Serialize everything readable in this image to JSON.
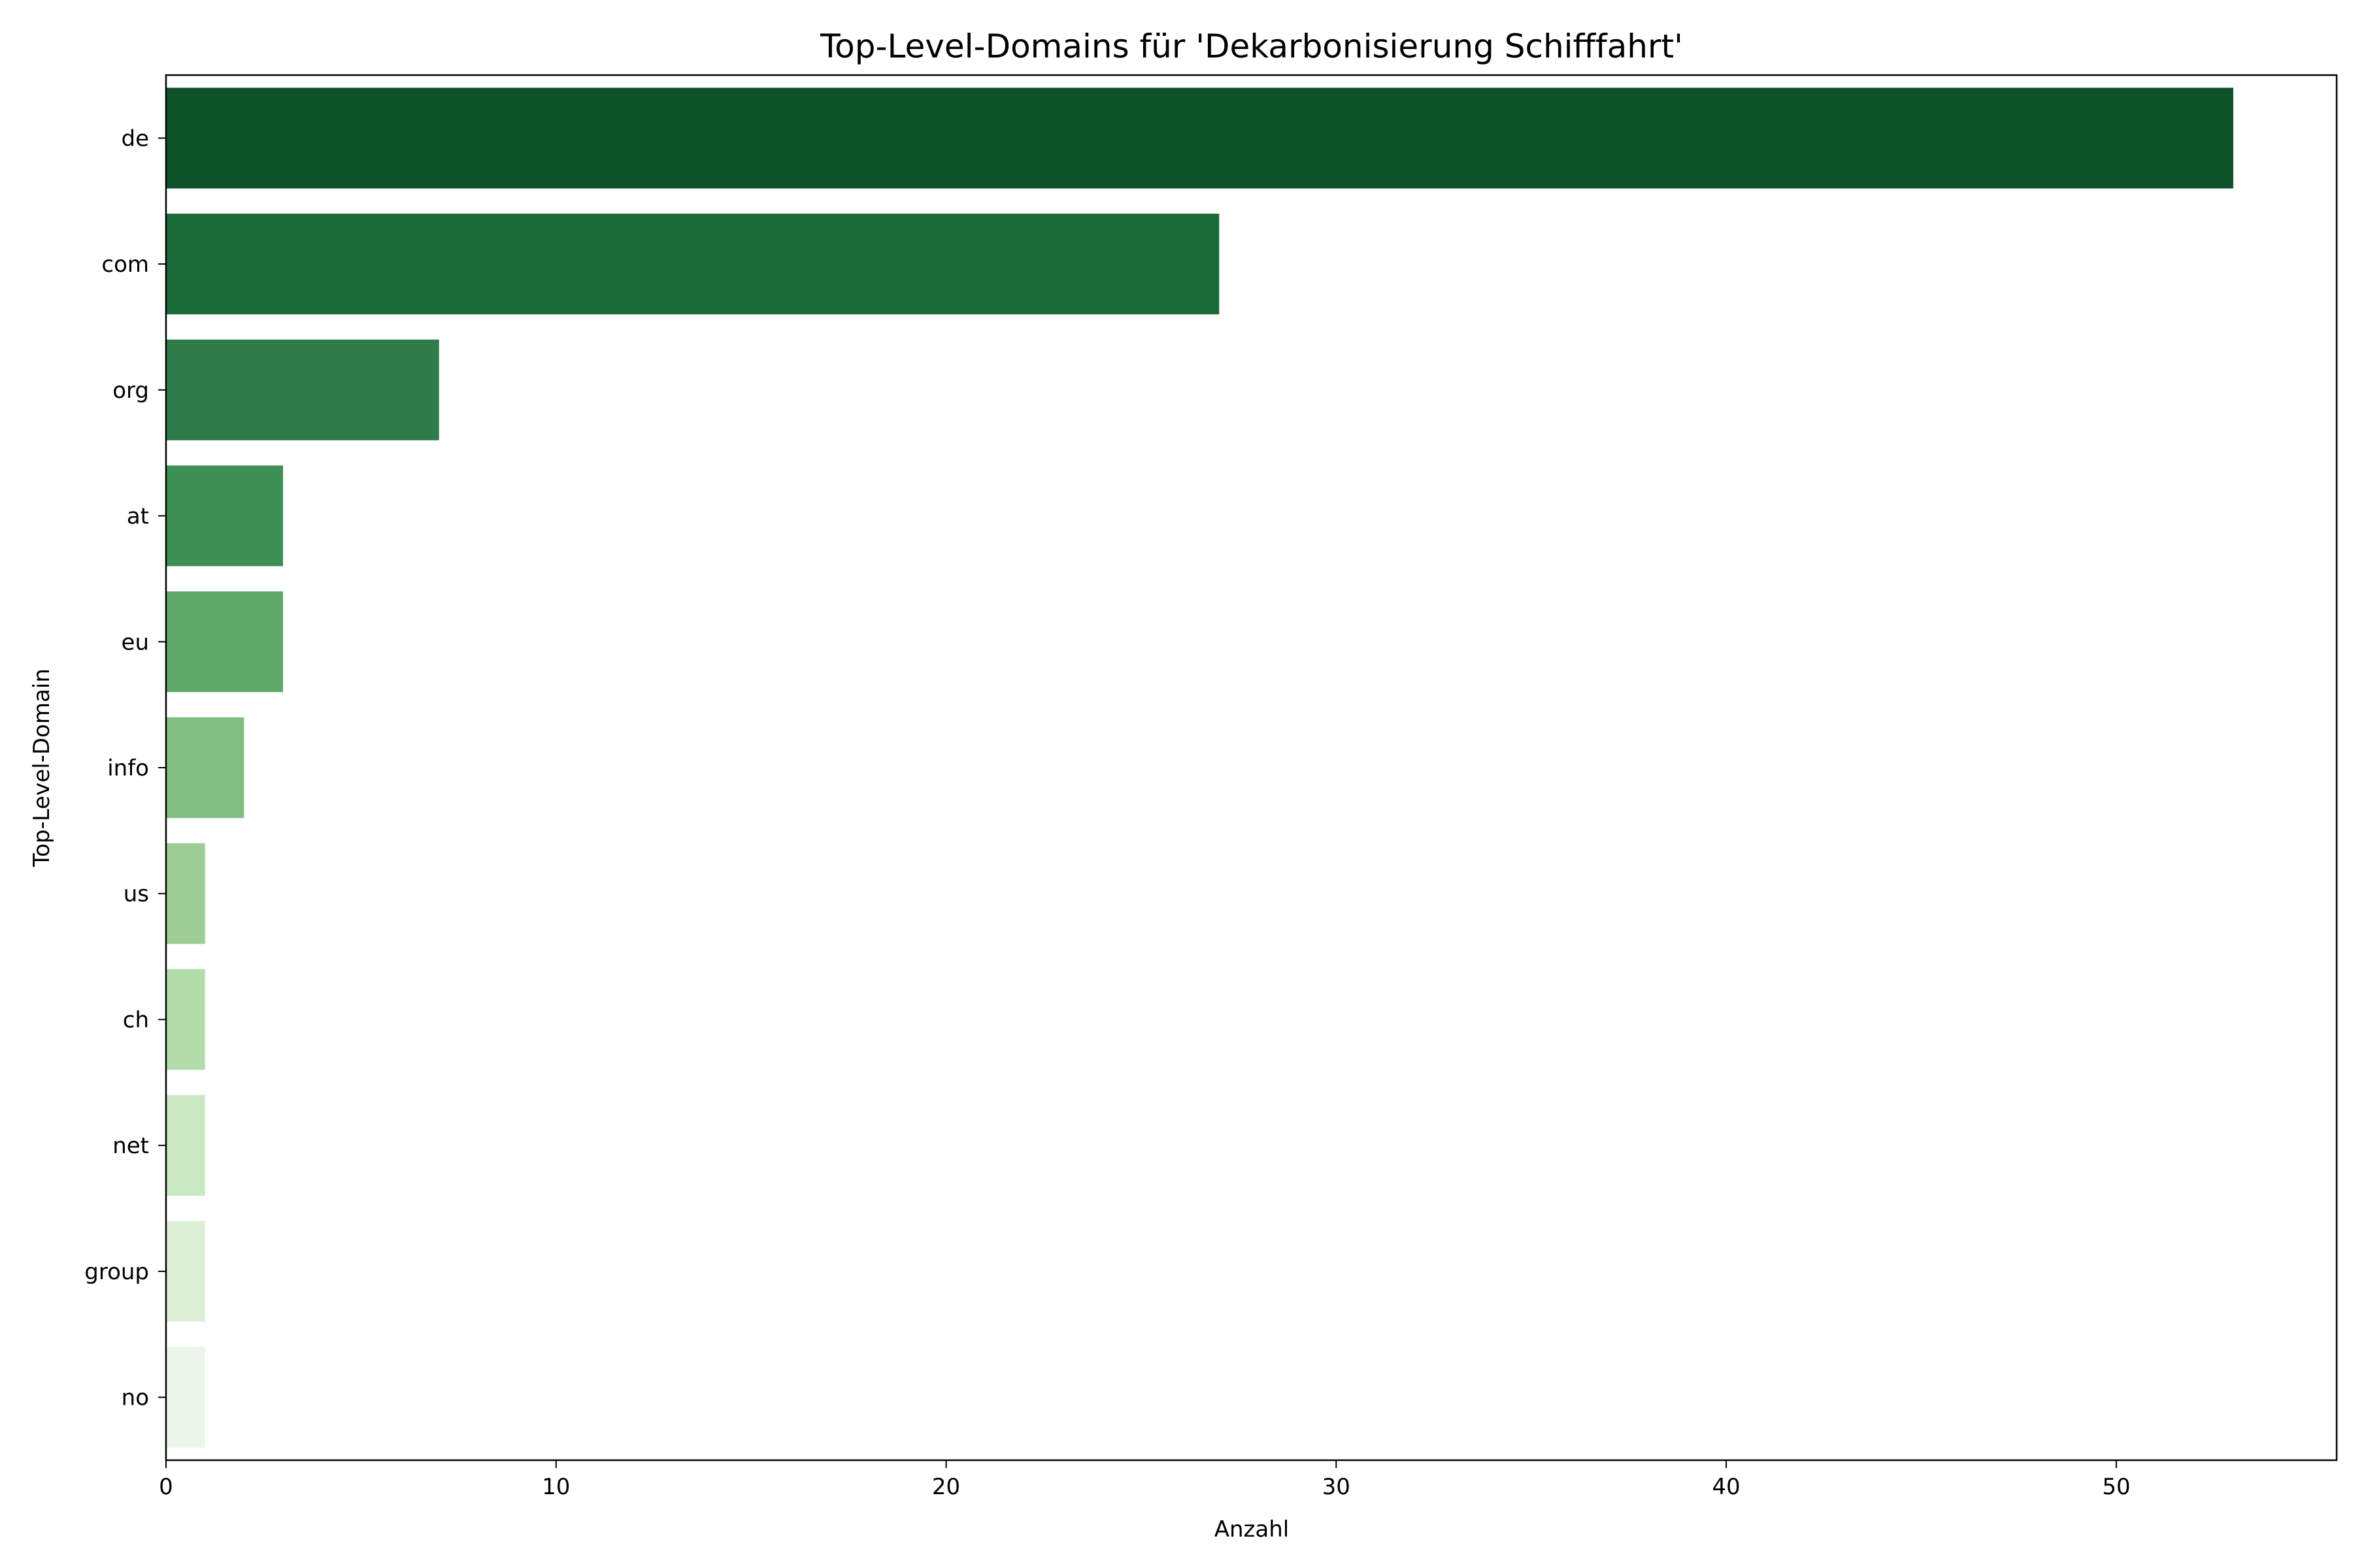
{
  "chart_data": {
    "type": "bar",
    "orientation": "horizontal",
    "title": "Top-Level-Domains für 'Dekarbonisierung Schifffahrt'",
    "xlabel": "Anzahl",
    "ylabel": "Top-Level-Domain",
    "xlim": [
      0,
      55.65
    ],
    "xticks": [
      0,
      10,
      20,
      30,
      40,
      50
    ],
    "grid": false,
    "legend": "none",
    "categories": [
      "de",
      "com",
      "org",
      "at",
      "eu",
      "info",
      "us",
      "ch",
      "net",
      "group",
      "no"
    ],
    "values": [
      53,
      27,
      7,
      3,
      3,
      2,
      1,
      1,
      1,
      1,
      1
    ],
    "colors": [
      "#0e5229",
      "#1a6b38",
      "#2f7c4a",
      "#3d8f55",
      "#5ea86a",
      "#82bd82",
      "#9dcd95",
      "#b3dcab",
      "#cae8c2",
      "#dcf0d5",
      "#ebf6e8"
    ]
  }
}
